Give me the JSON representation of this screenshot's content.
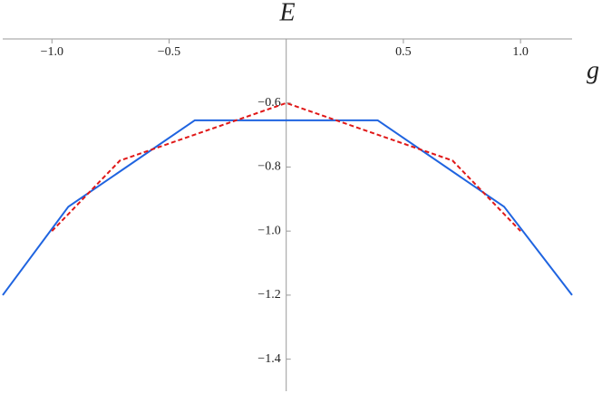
{
  "chart_data": {
    "type": "line",
    "x_label": "g",
    "y_label": "E",
    "xlim": [
      -1.21,
      1.22
    ],
    "ylim": [
      -1.5,
      -0.4
    ],
    "xticks": [
      {
        "value": -1,
        "label": "−1.0"
      },
      {
        "value": -0.5,
        "label": "−0.5"
      },
      {
        "value": 0.5,
        "label": "0.5"
      },
      {
        "value": 1,
        "label": "1.0"
      }
    ],
    "yticks": [
      {
        "value": -0.6,
        "label": "−0.6"
      },
      {
        "value": -0.8,
        "label": "−0.8"
      },
      {
        "value": -1,
        "label": "−1.0"
      },
      {
        "value": -1.2,
        "label": "−1.2"
      },
      {
        "value": -1.4,
        "label": "−1.4"
      }
    ],
    "series": [
      {
        "color": "#1f64e0",
        "style": "solid",
        "x": [
          -1.21,
          -0.93,
          -0.39,
          0.39,
          0.93,
          1.22
        ],
        "values": [
          -1.2,
          -0.924,
          -0.654,
          -0.654,
          -0.924,
          -1.2
        ]
      },
      {
        "color": "#e01818",
        "style": "dashed",
        "x": [
          -1.0,
          -0.71,
          0,
          0.71,
          1.0
        ],
        "values": [
          -1.0,
          -0.78,
          -0.6,
          -0.78,
          -1.0
        ]
      }
    ]
  }
}
